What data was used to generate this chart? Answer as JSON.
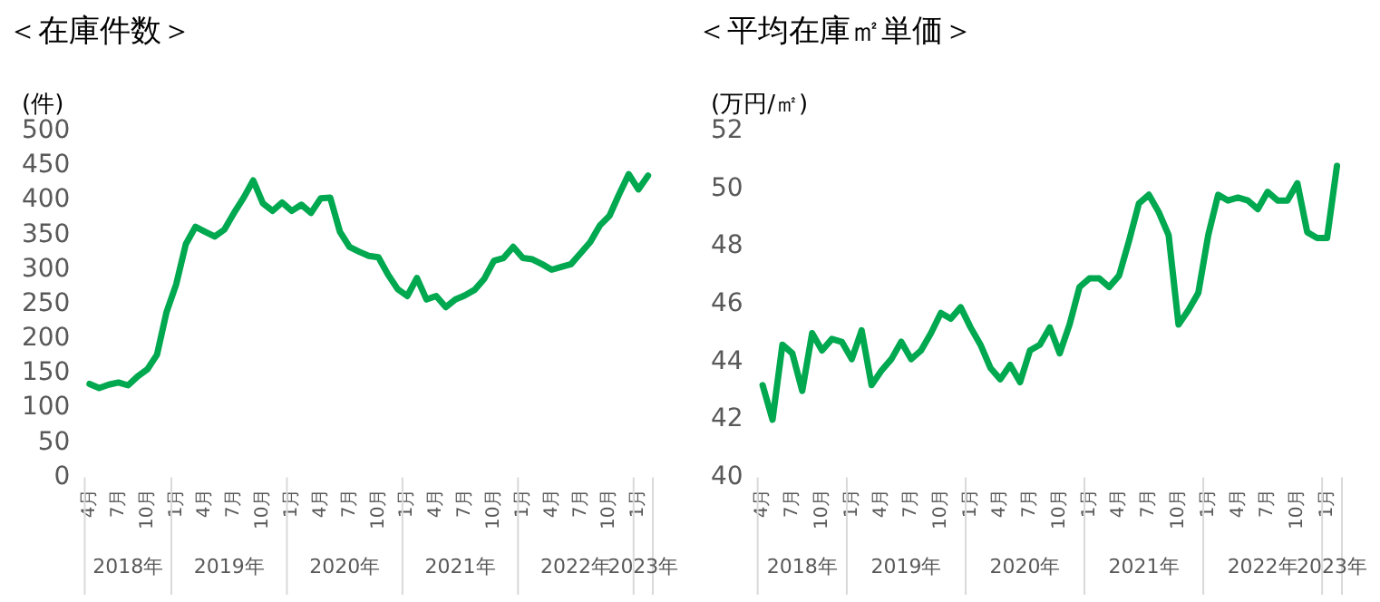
{
  "chart_data": [
    {
      "type": "line",
      "title": "＜在庫件数＞",
      "ylabel": "(件)",
      "categories": [
        "4月",
        null,
        null,
        "7月",
        null,
        null,
        "10月",
        null,
        null,
        "1月",
        null,
        null,
        "4月",
        null,
        null,
        "7月",
        null,
        null,
        "10月",
        null,
        null,
        "1月",
        null,
        null,
        "4月",
        null,
        null,
        "7月",
        null,
        null,
        "10月",
        null,
        null,
        "1月",
        null,
        null,
        "4月",
        null,
        null,
        "7月",
        null,
        null,
        "10月",
        null,
        null,
        "1月",
        null,
        null,
        "4月",
        null,
        null,
        "7月",
        null,
        null,
        "10月",
        null,
        null,
        "1月",
        null
      ],
      "series": [
        {
          "color": "#00a84f",
          "values": [
            135,
            129,
            134,
            137,
            133,
            146,
            156,
            177,
            239,
            279,
            337,
            362,
            355,
            348,
            358,
            382,
            404,
            429,
            396,
            385,
            397,
            385,
            394,
            382,
            403,
            404,
            355,
            333,
            326,
            320,
            318,
            293,
            272,
            262,
            288,
            257,
            262,
            246,
            257,
            263,
            271,
            287,
            313,
            317,
            333,
            317,
            315,
            308,
            300,
            304,
            308,
            324,
            340,
            364,
            378,
            409,
            438,
            416,
            436
          ]
        }
      ],
      "ylim": [
        0,
        500
      ],
      "yticks": [
        0,
        50,
        100,
        150,
        200,
        250,
        300,
        350,
        400,
        450,
        500
      ],
      "annotations": [
        "2018年",
        "2019年",
        "2020年",
        "2021年",
        "2022年",
        "2023年"
      ],
      "grid": false,
      "legend": false,
      "marker": "none",
      "line_style": "solid"
    },
    {
      "type": "line",
      "title": "＜平均在庫㎡単価＞",
      "ylabel": "(万円/㎡)",
      "categories": [
        "4月",
        null,
        null,
        "7月",
        null,
        null,
        "10月",
        null,
        null,
        "1月",
        null,
        null,
        "4月",
        null,
        null,
        "7月",
        null,
        null,
        "10月",
        null,
        null,
        "1月",
        null,
        null,
        "4月",
        null,
        null,
        "7月",
        null,
        null,
        "10月",
        null,
        null,
        "1月",
        null,
        null,
        "4月",
        null,
        null,
        "7月",
        null,
        null,
        "10月",
        null,
        null,
        "1月",
        null,
        null,
        "4月",
        null,
        null,
        "7月",
        null,
        null,
        "10月",
        null,
        null,
        "1月",
        null
      ],
      "series": [
        {
          "color": "#00a84f",
          "values": [
            43.2,
            42.0,
            44.6,
            44.3,
            43.0,
            45.0,
            44.4,
            44.8,
            44.7,
            44.1,
            45.1,
            43.2,
            43.7,
            44.1,
            44.7,
            44.1,
            44.4,
            45.0,
            45.7,
            45.5,
            45.9,
            45.2,
            44.6,
            43.8,
            43.4,
            43.9,
            43.3,
            44.4,
            44.6,
            45.2,
            44.3,
            45.3,
            46.6,
            46.9,
            46.9,
            46.6,
            47.0,
            48.2,
            49.5,
            49.8,
            49.2,
            48.4,
            45.3,
            45.8,
            46.4,
            48.4,
            49.8,
            49.6,
            49.7,
            49.6,
            49.3,
            49.9,
            49.6,
            49.6,
            50.2,
            48.5,
            48.3,
            48.3,
            50.8
          ]
        }
      ],
      "ylim": [
        40,
        52
      ],
      "yticks": [
        40,
        42,
        44,
        46,
        48,
        50,
        52
      ],
      "annotations": [
        "2018年",
        "2019年",
        "2020年",
        "2021年",
        "2022年",
        "2023年"
      ],
      "grid": false,
      "legend": false,
      "marker": "none",
      "line_style": "solid"
    }
  ]
}
